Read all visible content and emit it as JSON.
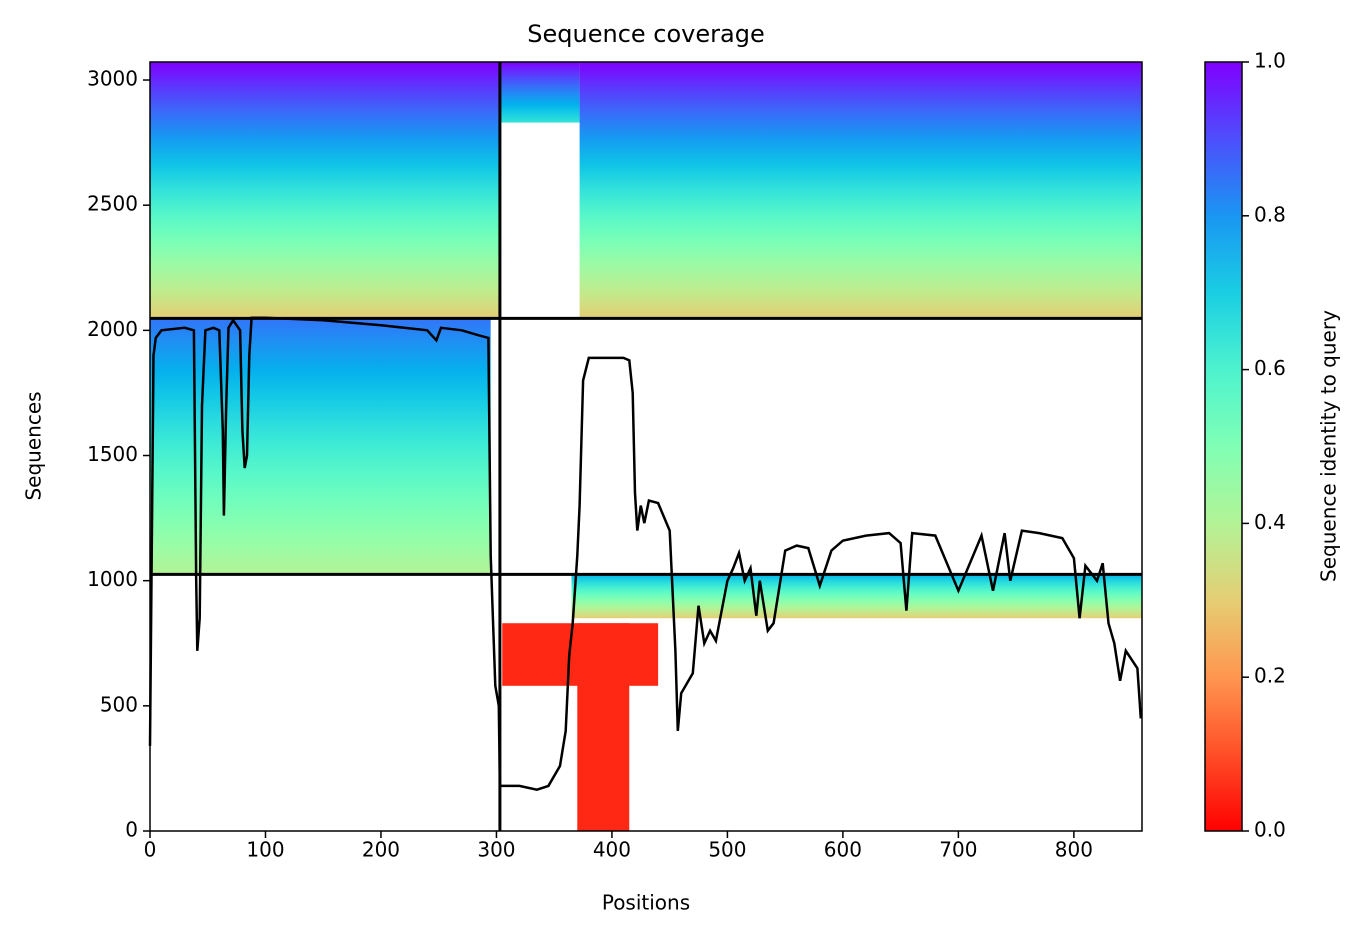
{
  "chart_data": {
    "type": "coverage",
    "title": "Sequence coverage",
    "xlabel": "Positions",
    "ylabel": "Sequences",
    "colorbar_label": "Sequence identity to query",
    "colormap": "rainbow_r",
    "xlim": [
      0,
      859
    ],
    "xticks": [
      0,
      100,
      200,
      300,
      400,
      500,
      600,
      700,
      800
    ],
    "ylim": [
      0,
      3072
    ],
    "yticks": [
      0,
      500,
      1000,
      1500,
      2000,
      2500,
      3000
    ],
    "clim": [
      0,
      1
    ],
    "cticks": [
      {
        "value": 0,
        "label": "0.0"
      },
      0.2,
      0.4,
      0.6,
      0.8,
      {
        "value": 1,
        "label": "1.0"
      }
    ],
    "blocks": [
      {
        "x": [
          0,
          303
        ],
        "y": [
          2048,
          3072
        ],
        "identity": [
          1.0,
          0.3
        ]
      },
      {
        "x": [
          303,
          372
        ],
        "y": [
          2830,
          3072
        ],
        "identity": [
          1.0,
          0.65
        ]
      },
      {
        "x": [
          372,
          859
        ],
        "y": [
          2048,
          3072
        ],
        "identity": [
          1.0,
          0.3
        ]
      },
      {
        "x": [
          0,
          295
        ],
        "y": [
          1025,
          2048
        ],
        "identity": [
          0.85,
          0.4
        ]
      },
      {
        "x": [
          365,
          859
        ],
        "y": [
          850,
          1025
        ],
        "identity": [
          0.75,
          0.3
        ]
      },
      {
        "x": [
          305,
          440
        ],
        "y": [
          580,
          830
        ],
        "identity": [
          0.05,
          0.05
        ]
      },
      {
        "x": [
          370,
          415
        ],
        "y": [
          0,
          830
        ],
        "identity": [
          0.05,
          0.05
        ]
      }
    ],
    "dividers": {
      "x": [
        303
      ],
      "y": [
        2048,
        1025
      ]
    },
    "coverage": {
      "color": "#000000",
      "x": [
        0,
        3,
        5,
        10,
        30,
        38,
        40,
        41,
        43,
        45,
        48,
        55,
        60,
        63,
        64,
        66,
        68,
        72,
        78,
        80,
        82,
        84,
        86,
        88,
        100,
        150,
        200,
        220,
        240,
        248,
        252,
        270,
        285,
        293,
        295,
        299,
        302,
        303,
        320,
        335,
        345,
        355,
        360,
        363,
        366,
        370,
        372,
        375,
        380,
        410,
        415,
        418,
        420,
        422,
        425,
        428,
        432,
        440,
        450,
        455,
        457,
        460,
        470,
        475,
        480,
        485,
        490,
        500,
        505,
        510,
        515,
        520,
        525,
        528,
        535,
        540,
        550,
        560,
        570,
        580,
        590,
        600,
        620,
        640,
        650,
        655,
        660,
        680,
        700,
        720,
        730,
        740,
        745,
        755,
        770,
        790,
        800,
        805,
        810,
        820,
        825,
        830,
        835,
        840,
        845,
        855,
        858
      ],
      "y": [
        340,
        1900,
        1970,
        2000,
        2010,
        2000,
        1000,
        720,
        850,
        1700,
        2000,
        2010,
        2000,
        1600,
        1260,
        1700,
        2010,
        2040,
        2000,
        1600,
        1450,
        1500,
        1900,
        2050,
        2050,
        2040,
        2020,
        2010,
        2000,
        1960,
        2010,
        2000,
        1980,
        1970,
        1100,
        580,
        500,
        180,
        180,
        165,
        180,
        260,
        400,
        700,
        830,
        1100,
        1300,
        1800,
        1890,
        1890,
        1880,
        1750,
        1350,
        1200,
        1300,
        1230,
        1320,
        1310,
        1200,
        720,
        400,
        550,
        630,
        900,
        750,
        800,
        760,
        1000,
        1050,
        1110,
        1000,
        1050,
        860,
        1000,
        800,
        830,
        1120,
        1140,
        1130,
        980,
        1120,
        1160,
        1180,
        1190,
        1150,
        880,
        1190,
        1180,
        960,
        1180,
        960,
        1190,
        1000,
        1200,
        1190,
        1170,
        1090,
        850,
        1060,
        1000,
        1070,
        830,
        750,
        600,
        720,
        650,
        450
      ]
    }
  }
}
